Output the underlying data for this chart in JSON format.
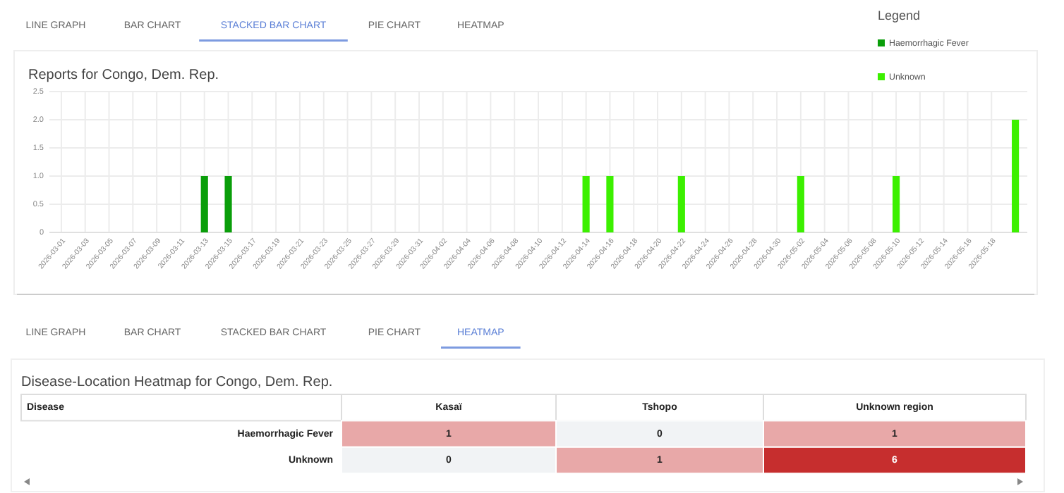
{
  "chart_data": [
    {
      "type": "bar",
      "title": "Reports for Congo, Dem. Rep.",
      "legend": "top right",
      "legend_title": "Legend",
      "grid": true,
      "annotations": [
        "LINE GRAPH",
        "BAR CHART",
        "STACKED BAR CHART",
        "PIE CHART",
        "HEATMAP"
      ],
      "xlim": [
        "2026-02-28",
        "2026-05-21"
      ],
      "xticks": [
        "2026-03-01",
        "2026-03-03",
        "2026-03-05",
        "2026-03-07",
        "2026-03-09",
        "2026-03-11",
        "2026-03-13",
        "2026-03-15",
        "2026-03-17",
        "2026-03-19",
        "2026-03-21",
        "2026-03-23",
        "2026-03-25",
        "2026-03-27",
        "2026-03-29",
        "2026-03-31",
        "2026-04-02",
        "2026-04-04",
        "2026-04-06",
        "2026-04-08",
        "2026-04-10",
        "2026-04-12",
        "2026-04-14",
        "2026-04-16",
        "2026-04-18",
        "2026-04-20",
        "2026-04-22",
        "2026-04-24",
        "2026-04-26",
        "2026-04-28",
        "2026-04-30",
        "2026-05-02",
        "2026-05-04",
        "2026-05-06",
        "2026-05-08",
        "2026-05-10",
        "2026-05-12",
        "2026-05-14",
        "2026-05-16",
        "2026-05-18"
      ],
      "ylim": [
        0,
        2.5
      ],
      "yticks": [
        0,
        0.5,
        {
          "value": 1,
          "label": "1.0"
        },
        1.5,
        {
          "value": 2,
          "label": "2.0"
        },
        2.5
      ],
      "series": [
        {
          "name": "Haemorrhagic Fever",
          "color": "#0a9e0a",
          "x": [
            "2026-03-13",
            "2026-03-15"
          ],
          "values": [
            1,
            1
          ]
        },
        {
          "name": "Unknown",
          "color": "#3cf000",
          "x": [
            "2026-04-14",
            "2026-04-16",
            "2026-04-22",
            "2026-05-02",
            "2026-05-10",
            "2026-05-20"
          ],
          "values": [
            1,
            1,
            1,
            1,
            1,
            2
          ]
        }
      ]
    },
    {
      "type": "heatmap",
      "title": "Disease-Location Heatmap for Congo, Dem. Rep.",
      "ylabel": "Disease",
      "data_labels": true,
      "annotations": [
        "LINE GRAPH",
        "BAR CHART",
        "STACKED BAR CHART",
        "PIE CHART",
        "HEATMAP"
      ],
      "categories": [
        "Kasaï",
        "Tshopo",
        "Unknown region"
      ],
      "y_categories": [
        "Haemorrhagic Fever",
        "Unknown"
      ],
      "cells": [
        [
          1,
          0,
          1
        ],
        [
          0,
          1,
          6
        ]
      ]
    }
  ]
}
